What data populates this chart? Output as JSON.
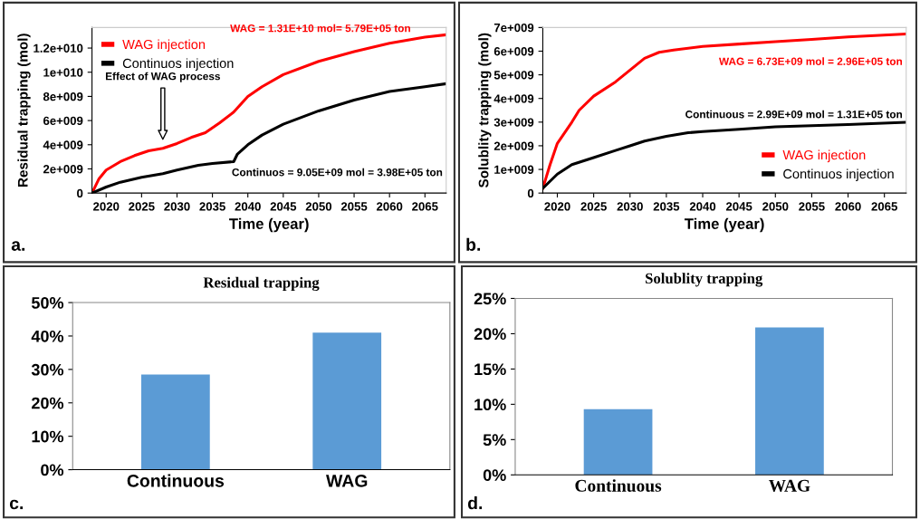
{
  "chart_data": [
    {
      "type": "line",
      "xlabel": "Time (year)",
      "ylabel": "Residual trapping (mol)",
      "xlim": [
        2018,
        2068
      ],
      "xticks": [
        2020,
        2025,
        2030,
        2035,
        2040,
        2045,
        2050,
        2055,
        2060,
        2065
      ],
      "ylim": [
        0,
        13700000000
      ],
      "yticks": [
        {
          "value": 0,
          "label": "0"
        },
        {
          "value": 2000000000,
          "label": "2e+009"
        },
        {
          "value": 4000000000,
          "label": "4e+009"
        },
        {
          "value": 6000000000,
          "label": "6e+009"
        },
        {
          "value": 8000000000,
          "label": "8e+009"
        },
        {
          "value": 10000000000,
          "label": "1e+010"
        },
        {
          "value": 12000000000,
          "label": "1.2e+010"
        }
      ],
      "legend": "top left",
      "grid": false,
      "series": [
        {
          "name": "WAG injection",
          "color": "#ff0000",
          "x": [
            2018,
            2019,
            2020,
            2022,
            2024,
            2026,
            2028,
            2030,
            2032,
            2034,
            2036,
            2038,
            2040,
            2042,
            2045,
            2050,
            2055,
            2060,
            2065,
            2068
          ],
          "values": [
            0,
            1200000000,
            1900000000,
            2600000000,
            3100000000,
            3500000000,
            3700000000,
            4100000000,
            4600000000,
            5000000000,
            5800000000,
            6700000000,
            8000000000,
            8800000000,
            9800000000,
            10900000000,
            11700000000,
            12400000000,
            12900000000,
            13100000000
          ]
        },
        {
          "name": "Continuos injection",
          "color": "#000000",
          "x": [
            2018,
            2020,
            2022,
            2025,
            2028,
            2030,
            2033,
            2035,
            2038,
            2038.5,
            2040,
            2042,
            2045,
            2050,
            2055,
            2060,
            2065,
            2068
          ],
          "values": [
            0,
            500000000,
            900000000,
            1300000000,
            1600000000,
            1900000000,
            2300000000,
            2450000000,
            2600000000,
            3200000000,
            4000000000,
            4800000000,
            5700000000,
            6800000000,
            7700000000,
            8400000000,
            8800000000,
            9050000000
          ]
        }
      ],
      "annotations": [
        "WAG = 1.31E+10 mol= 5.79E+05 ton",
        "Effect of WAG process",
        "Continuos = 9.05E+09 mol = 3.98E+05 ton",
        "a."
      ]
    },
    {
      "type": "line",
      "xlabel": "Time (year)",
      "ylabel": "Solublity trapping (mol)",
      "xlim": [
        2018,
        2068
      ],
      "xticks": [
        2020,
        2025,
        2030,
        2035,
        2040,
        2045,
        2050,
        2055,
        2060,
        2065
      ],
      "ylim": [
        0,
        7000000000
      ],
      "yticks": [
        {
          "value": 0,
          "label": "0"
        },
        {
          "value": 1000000000,
          "label": "1e+009"
        },
        {
          "value": 2000000000,
          "label": "2e+009"
        },
        {
          "value": 3000000000,
          "label": "3e+009"
        },
        {
          "value": 4000000000,
          "label": "4e+009"
        },
        {
          "value": 5000000000,
          "label": "5e+009"
        },
        {
          "value": 6000000000,
          "label": "6e+009"
        },
        {
          "value": 7000000000,
          "label": "7e+009"
        }
      ],
      "legend": "bottom right",
      "grid": false,
      "series": [
        {
          "name": "WAG injection",
          "color": "#ff0000",
          "x": [
            2018,
            2019,
            2020,
            2022,
            2023,
            2025,
            2028,
            2030,
            2032,
            2034,
            2036,
            2040,
            2045,
            2050,
            2055,
            2060,
            2068
          ],
          "values": [
            200000000,
            1200000000,
            2100000000,
            3000000000,
            3500000000,
            4100000000,
            4700000000,
            5200000000,
            5700000000,
            5950000000,
            6050000000,
            6200000000,
            6300000000,
            6400000000,
            6500000000,
            6600000000,
            6730000000
          ]
        },
        {
          "name": "Continuos injection",
          "color": "#000000",
          "x": [
            2018,
            2020,
            2022,
            2025,
            2028,
            2030,
            2032,
            2035,
            2038,
            2040,
            2045,
            2050,
            2060,
            2068
          ],
          "values": [
            200000000,
            800000000,
            1200000000,
            1500000000,
            1800000000,
            2000000000,
            2200000000,
            2400000000,
            2550000000,
            2600000000,
            2700000000,
            2800000000,
            2900000000,
            2990000000
          ]
        }
      ],
      "annotations": [
        "WAG = 6.73E+09 mol = 2.96E+05 ton",
        "Continuous = 2.99E+09 mol = 1.31E+05 ton",
        "b."
      ]
    },
    {
      "type": "bar",
      "title": "Residual trapping",
      "categories": [
        "Continuous",
        "WAG"
      ],
      "values": [
        28.5,
        41
      ],
      "color": "#5b9bd5",
      "ylim": [
        0,
        50
      ],
      "yticks": [
        {
          "value": 0,
          "label": "0%"
        },
        {
          "value": 10,
          "label": "10%"
        },
        {
          "value": 20,
          "label": "20%"
        },
        {
          "value": 30,
          "label": "30%"
        },
        {
          "value": 40,
          "label": "40%"
        },
        {
          "value": 50,
          "label": "50%"
        }
      ],
      "grid": false,
      "annotations": [
        "c."
      ]
    },
    {
      "type": "bar",
      "title": "Solublity trapping",
      "categories": [
        "Continuous",
        "WAG"
      ],
      "values": [
        9.3,
        20.9
      ],
      "color": "#5b9bd5",
      "ylim": [
        0,
        25
      ],
      "yticks": [
        {
          "value": 0,
          "label": "0%"
        },
        {
          "value": 5,
          "label": "5%"
        },
        {
          "value": 10,
          "label": "10%"
        },
        {
          "value": 15,
          "label": "15%"
        },
        {
          "value": 20,
          "label": "20%"
        },
        {
          "value": 25,
          "label": "25%"
        }
      ],
      "grid": false,
      "annotations": [
        "d."
      ]
    }
  ]
}
